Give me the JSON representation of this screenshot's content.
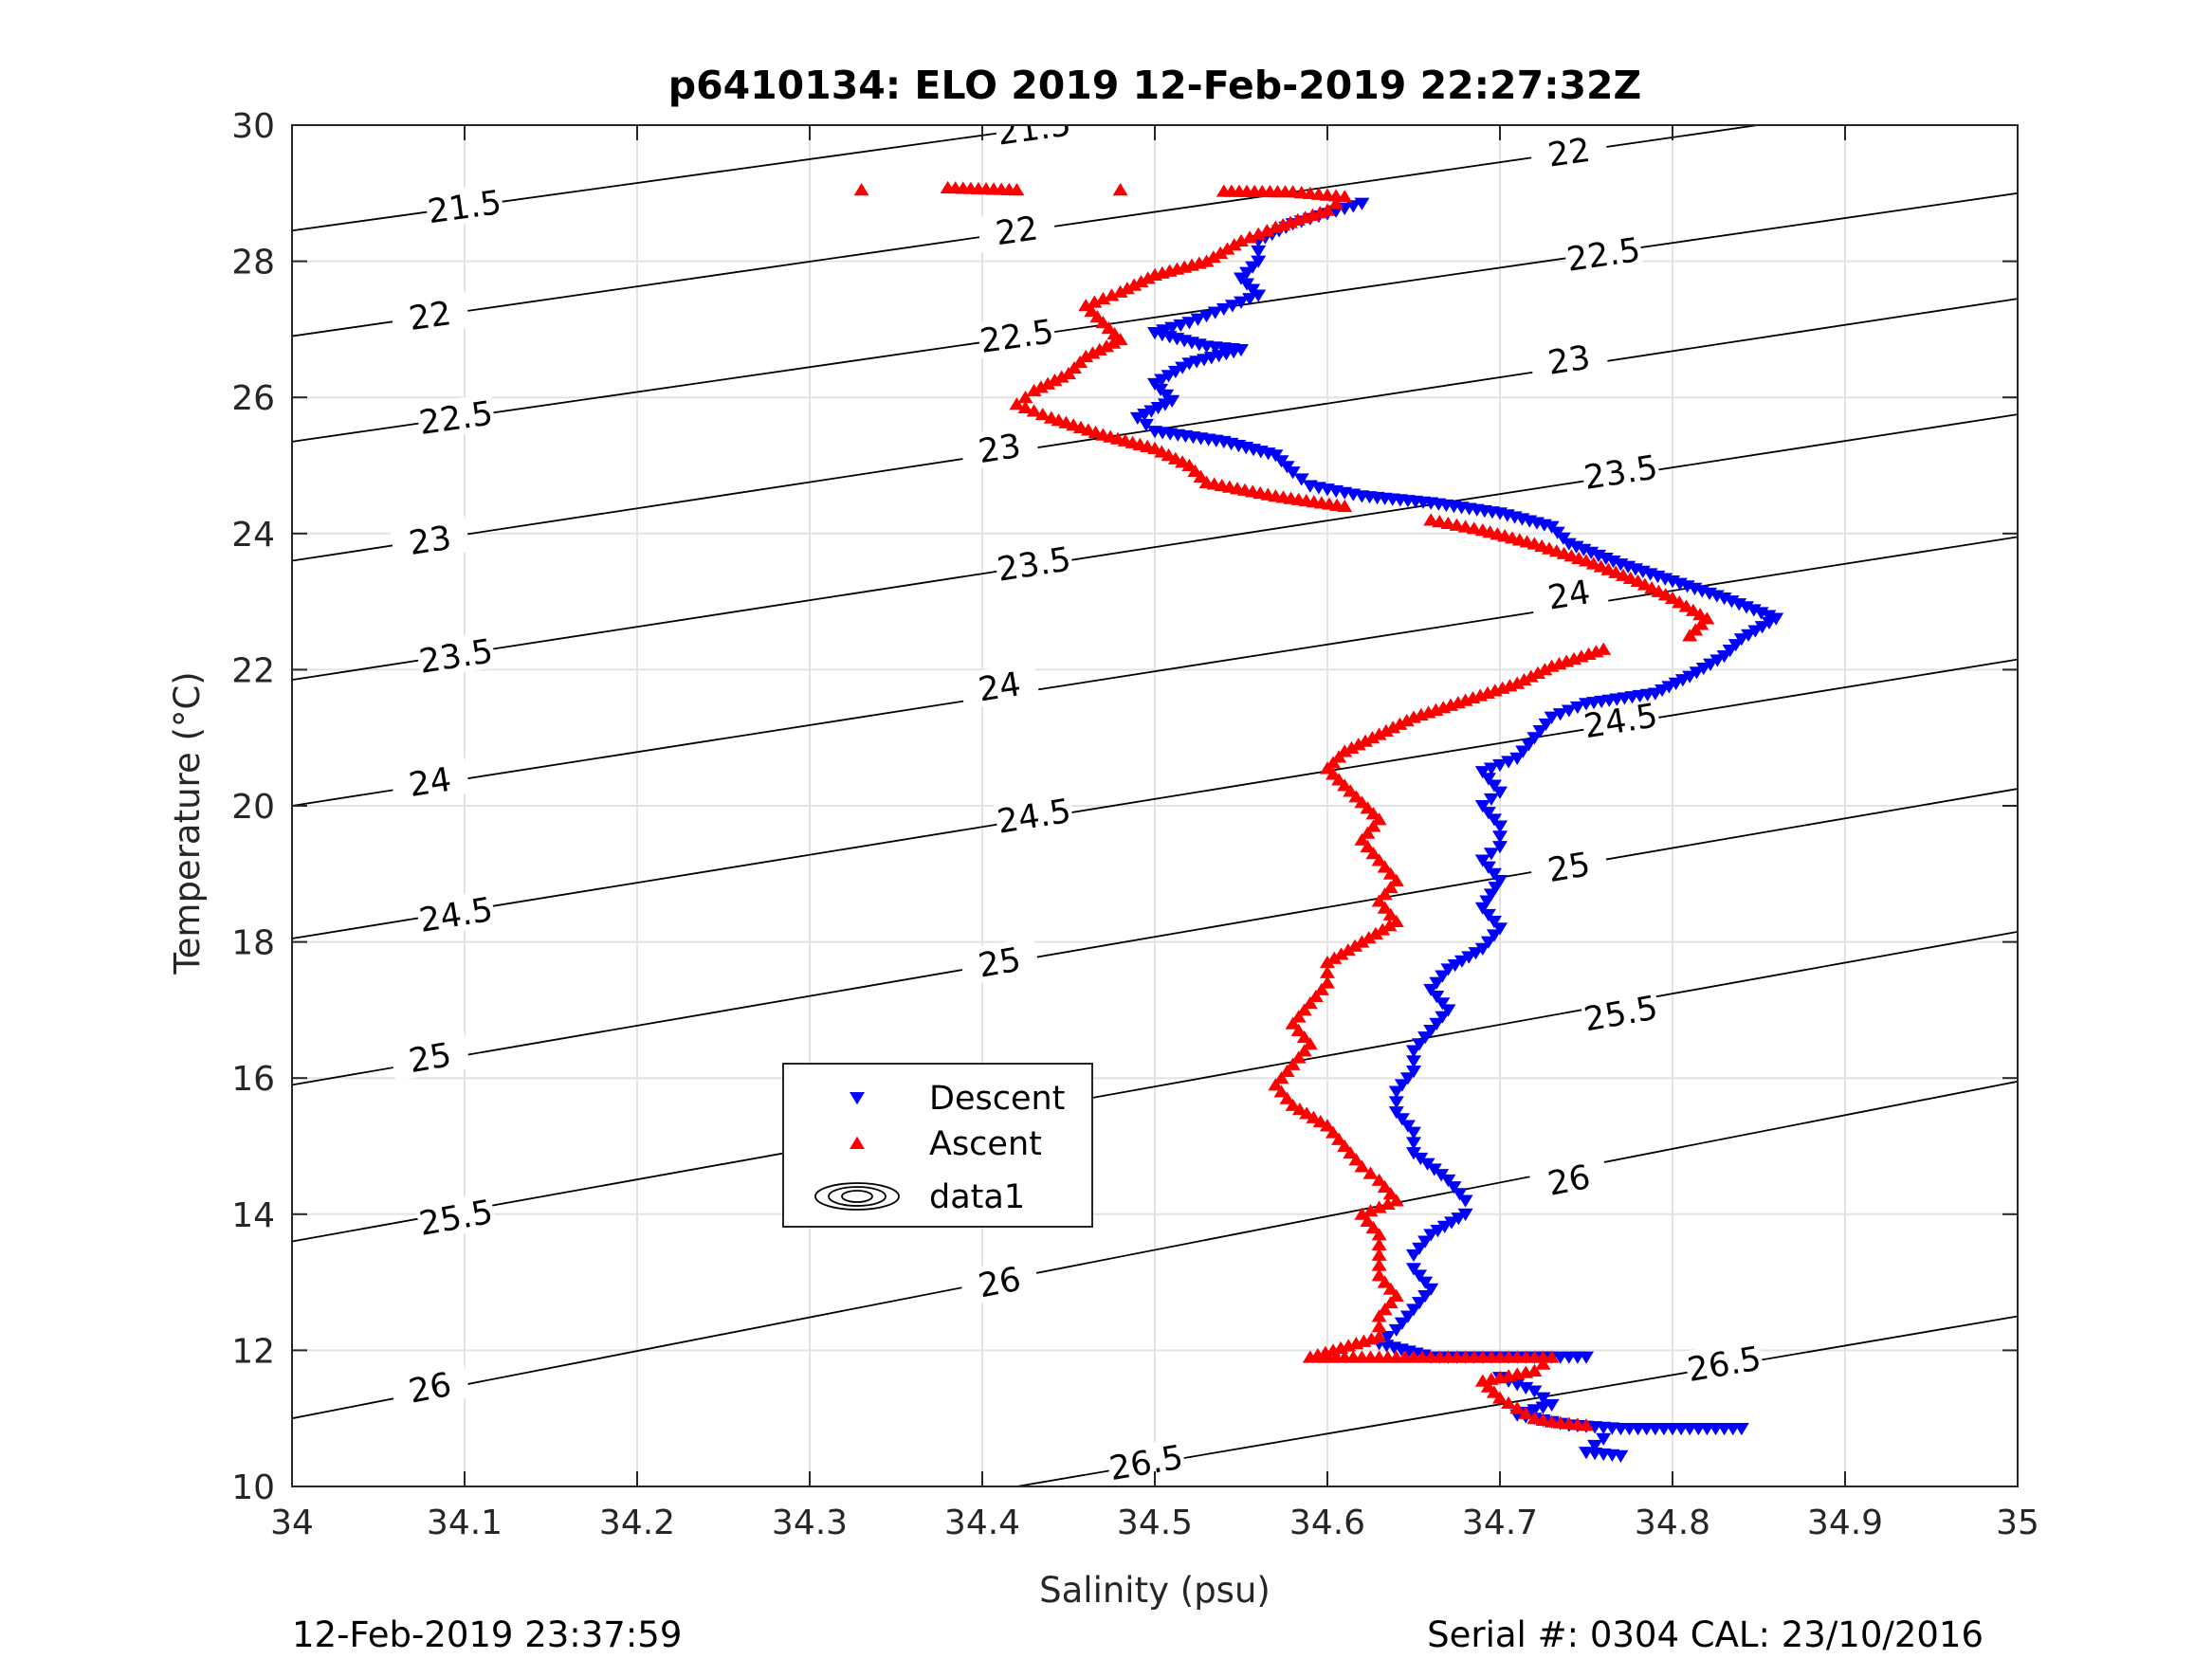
{
  "chart_data": {
    "type": "scatter",
    "title": "p6410134: ELO 2019 12-Feb-2019 22:27:32Z",
    "xlabel": "Salinity (psu)",
    "ylabel": "Temperature (°C)",
    "xlim": [
      34,
      35
    ],
    "ylim": [
      10,
      30
    ],
    "xticks": [
      "34",
      "34.1",
      "34.2",
      "34.3",
      "34.4",
      "34.5",
      "34.6",
      "34.7",
      "34.8",
      "34.9",
      "35"
    ],
    "yticks": [
      "10",
      "12",
      "14",
      "16",
      "18",
      "20",
      "22",
      "24",
      "26",
      "28",
      "30"
    ],
    "grid": true,
    "legend_position": "lower-left-center",
    "legend": [
      "Descent",
      "Ascent",
      "data1"
    ],
    "series": [
      {
        "name": "Descent",
        "marker": "triangle-down",
        "color": "#0000ff",
        "points": [
          [
            34.62,
            28.85
          ],
          [
            34.6,
            28.7
          ],
          [
            34.58,
            28.55
          ],
          [
            34.56,
            28.3
          ],
          [
            34.56,
            28.0
          ],
          [
            34.55,
            27.75
          ],
          [
            34.56,
            27.5
          ],
          [
            34.54,
            27.3
          ],
          [
            34.52,
            27.1
          ],
          [
            34.5,
            26.95
          ],
          [
            34.53,
            26.75
          ],
          [
            34.55,
            26.7
          ],
          [
            34.52,
            26.5
          ],
          [
            34.5,
            26.2
          ],
          [
            34.51,
            25.95
          ],
          [
            34.49,
            25.7
          ],
          [
            34.5,
            25.5
          ],
          [
            34.54,
            25.35
          ],
          [
            34.57,
            25.15
          ],
          [
            34.58,
            24.9
          ],
          [
            34.59,
            24.7
          ],
          [
            34.62,
            24.55
          ],
          [
            34.66,
            24.45
          ],
          [
            34.7,
            24.3
          ],
          [
            34.73,
            24.1
          ],
          [
            34.74,
            23.85
          ],
          [
            34.77,
            23.55
          ],
          [
            34.8,
            23.3
          ],
          [
            34.83,
            23.05
          ],
          [
            34.86,
            22.75
          ],
          [
            34.84,
            22.45
          ],
          [
            34.83,
            22.2
          ],
          [
            34.81,
            21.9
          ],
          [
            34.79,
            21.65
          ],
          [
            34.75,
            21.5
          ],
          [
            34.73,
            21.3
          ],
          [
            34.72,
            21.0
          ],
          [
            34.71,
            20.7
          ],
          [
            34.69,
            20.5
          ],
          [
            34.7,
            20.2
          ],
          [
            34.69,
            20.0
          ],
          [
            34.7,
            19.7
          ],
          [
            34.7,
            19.4
          ],
          [
            34.69,
            19.2
          ],
          [
            34.7,
            18.9
          ],
          [
            34.69,
            18.5
          ],
          [
            34.7,
            18.2
          ],
          [
            34.69,
            17.9
          ],
          [
            34.67,
            17.6
          ],
          [
            34.66,
            17.3
          ],
          [
            34.67,
            17.0
          ],
          [
            34.66,
            16.7
          ],
          [
            34.65,
            16.4
          ],
          [
            34.65,
            16.1
          ],
          [
            34.64,
            15.8
          ],
          [
            34.64,
            15.5
          ],
          [
            34.65,
            15.2
          ],
          [
            34.65,
            14.9
          ],
          [
            34.67,
            14.5
          ],
          [
            34.68,
            14.2
          ],
          [
            34.68,
            14.0
          ],
          [
            34.66,
            13.7
          ],
          [
            34.65,
            13.4
          ],
          [
            34.65,
            13.2
          ],
          [
            34.66,
            12.9
          ],
          [
            34.65,
            12.6
          ],
          [
            34.64,
            12.3
          ],
          [
            34.63,
            12.1
          ],
          [
            34.66,
            11.9
          ],
          [
            34.69,
            11.9
          ],
          [
            34.72,
            11.9
          ],
          [
            34.75,
            11.9
          ],
          [
            34.7,
            11.6
          ],
          [
            34.72,
            11.4
          ],
          [
            34.73,
            11.2
          ],
          [
            34.71,
            11.05
          ],
          [
            34.74,
            10.9
          ],
          [
            34.77,
            10.85
          ],
          [
            34.79,
            10.85
          ],
          [
            34.81,
            10.85
          ],
          [
            34.84,
            10.85
          ],
          [
            34.76,
            10.7
          ],
          [
            34.75,
            10.5
          ],
          [
            34.77,
            10.45
          ]
        ]
      },
      {
        "name": "Ascent",
        "marker": "triangle-up",
        "color": "#ff0000",
        "points": [
          [
            34.33,
            29.05
          ],
          [
            34.38,
            29.08
          ],
          [
            34.42,
            29.05
          ],
          [
            34.48,
            29.05
          ],
          [
            34.54,
            29.03
          ],
          [
            34.58,
            29.02
          ],
          [
            34.61,
            28.95
          ],
          [
            34.6,
            28.75
          ],
          [
            34.57,
            28.5
          ],
          [
            34.55,
            28.3
          ],
          [
            34.53,
            28.0
          ],
          [
            34.5,
            27.8
          ],
          [
            34.48,
            27.55
          ],
          [
            34.46,
            27.35
          ],
          [
            34.47,
            27.1
          ],
          [
            34.48,
            26.85
          ],
          [
            34.46,
            26.6
          ],
          [
            34.45,
            26.35
          ],
          [
            34.43,
            26.1
          ],
          [
            34.42,
            25.9
          ],
          [
            34.44,
            25.7
          ],
          [
            34.47,
            25.45
          ],
          [
            34.5,
            25.25
          ],
          [
            34.52,
            25.0
          ],
          [
            34.53,
            24.75
          ],
          [
            34.57,
            24.55
          ],
          [
            34.61,
            24.4
          ],
          [
            34.66,
            24.2
          ],
          [
            34.69,
            24.05
          ],
          [
            34.72,
            23.85
          ],
          [
            34.75,
            23.6
          ],
          [
            34.78,
            23.3
          ],
          [
            34.8,
            23.05
          ],
          [
            34.82,
            22.75
          ],
          [
            34.81,
            22.5
          ],
          [
            34.76,
            22.3
          ],
          [
            34.73,
            22.05
          ],
          [
            34.71,
            21.8
          ],
          [
            34.68,
            21.55
          ],
          [
            34.65,
            21.3
          ],
          [
            34.63,
            21.05
          ],
          [
            34.61,
            20.8
          ],
          [
            34.6,
            20.55
          ],
          [
            34.61,
            20.3
          ],
          [
            34.62,
            20.05
          ],
          [
            34.63,
            19.8
          ],
          [
            34.62,
            19.5
          ],
          [
            34.63,
            19.2
          ],
          [
            34.64,
            18.9
          ],
          [
            34.63,
            18.6
          ],
          [
            34.64,
            18.3
          ],
          [
            34.62,
            18.0
          ],
          [
            34.6,
            17.7
          ],
          [
            34.6,
            17.4
          ],
          [
            34.59,
            17.1
          ],
          [
            34.58,
            16.8
          ],
          [
            34.59,
            16.5
          ],
          [
            34.58,
            16.2
          ],
          [
            34.57,
            15.9
          ],
          [
            34.58,
            15.6
          ],
          [
            34.6,
            15.3
          ],
          [
            34.61,
            15.0
          ],
          [
            34.62,
            14.7
          ],
          [
            34.63,
            14.5
          ],
          [
            34.64,
            14.2
          ],
          [
            34.62,
            14.0
          ],
          [
            34.63,
            13.7
          ],
          [
            34.63,
            13.4
          ],
          [
            34.63,
            13.1
          ],
          [
            34.64,
            12.8
          ],
          [
            34.63,
            12.5
          ],
          [
            34.63,
            12.2
          ],
          [
            34.59,
            11.9
          ],
          [
            34.61,
            11.9
          ],
          [
            34.64,
            11.9
          ],
          [
            34.67,
            11.9
          ],
          [
            34.7,
            11.9
          ],
          [
            34.73,
            11.9
          ],
          [
            34.72,
            11.7
          ],
          [
            34.69,
            11.55
          ],
          [
            34.7,
            11.3
          ],
          [
            34.71,
            11.15
          ],
          [
            34.72,
            11.0
          ],
          [
            34.73,
            10.95
          ],
          [
            34.75,
            10.9
          ]
        ]
      }
    ],
    "contours": [
      {
        "label": "21.5",
        "points": [
          [
            34.0,
            28.45
          ],
          [
            35.0,
            31.95
          ]
        ],
        "labels_at": [
          [
            34.1,
            28.8
          ],
          [
            34.43,
            29.95
          ]
        ]
      },
      {
        "label": "22",
        "points": [
          [
            34.0,
            26.9
          ],
          [
            35.0,
            30.55
          ]
        ],
        "labels_at": [
          [
            34.08,
            27.2
          ],
          [
            34.42,
            28.45
          ],
          [
            34.74,
            29.6
          ]
        ]
      },
      {
        "label": "22.5",
        "points": [
          [
            34.0,
            25.35
          ],
          [
            35.0,
            29.0
          ]
        ],
        "labels_at": [
          [
            34.095,
            25.7
          ],
          [
            34.42,
            26.9
          ],
          [
            34.76,
            28.1
          ]
        ]
      },
      {
        "label": "23",
        "points": [
          [
            34.0,
            23.6
          ],
          [
            35.0,
            27.45
          ]
        ],
        "labels_at": [
          [
            34.08,
            23.9
          ],
          [
            34.41,
            25.25
          ],
          [
            34.74,
            26.55
          ]
        ]
      },
      {
        "label": "23.5",
        "points": [
          [
            34.0,
            21.85
          ],
          [
            35.0,
            25.75
          ]
        ],
        "labels_at": [
          [
            34.095,
            22.2
          ],
          [
            34.43,
            23.55
          ],
          [
            34.77,
            24.9
          ]
        ]
      },
      {
        "label": "24",
        "points": [
          [
            34.0,
            20.0
          ],
          [
            35.0,
            23.95
          ]
        ],
        "labels_at": [
          [
            34.08,
            20.35
          ],
          [
            34.41,
            21.75
          ],
          [
            34.74,
            23.1
          ]
        ]
      },
      {
        "label": "24.5",
        "points": [
          [
            34.0,
            18.05
          ],
          [
            35.0,
            22.15
          ]
        ],
        "labels_at": [
          [
            34.095,
            18.4
          ],
          [
            34.43,
            19.85
          ],
          [
            34.77,
            21.25
          ]
        ]
      },
      {
        "label": "25",
        "points": [
          [
            34.0,
            15.9
          ],
          [
            35.0,
            20.25
          ]
        ],
        "labels_at": [
          [
            34.08,
            16.3
          ],
          [
            34.41,
            17.7
          ],
          [
            34.74,
            19.1
          ]
        ]
      },
      {
        "label": "25.5",
        "points": [
          [
            34.0,
            13.6
          ],
          [
            35.0,
            18.15
          ]
        ],
        "labels_at": [
          [
            34.095,
            13.95
          ],
          [
            34.43,
            15.45
          ],
          [
            34.77,
            16.95
          ]
        ]
      },
      {
        "label": "26",
        "points": [
          [
            34.0,
            11.0
          ],
          [
            35.0,
            15.95
          ]
        ],
        "labels_at": [
          [
            34.08,
            11.45
          ],
          [
            34.41,
            13.0
          ],
          [
            34.74,
            14.5
          ]
        ]
      },
      {
        "label": "26.5",
        "points": [
          [
            34.42,
            10.0
          ],
          [
            35.0,
            12.5
          ]
        ],
        "labels_at": [
          [
            34.495,
            10.35
          ],
          [
            34.83,
            11.8
          ]
        ]
      }
    ],
    "annotations": {
      "footer_left": "12-Feb-2019 23:37:59",
      "footer_right": "Serial #: 0304  CAL: 23/10/2016"
    }
  }
}
